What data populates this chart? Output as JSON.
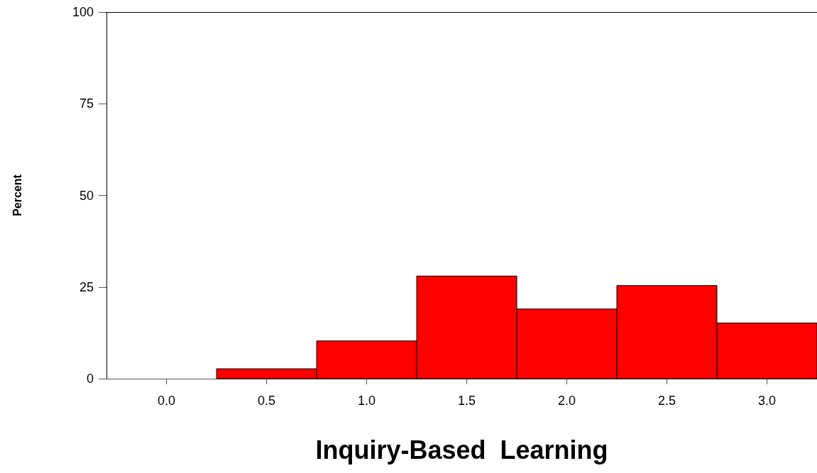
{
  "chart_data": {
    "type": "histogram",
    "xlabel": "Inquiry-Based  Learning",
    "ylabel": "Percent",
    "bins": [
      0.25,
      0.75,
      1.25,
      1.75,
      2.25,
      2.75,
      3.25
    ],
    "values": [
      2.7,
      10.3,
      28.0,
      19.0,
      25.4,
      15.2
    ],
    "color": "#ff0000",
    "xlim": [
      -0.3,
      3.25
    ],
    "xticks": [
      {
        "value": 0,
        "label": "0.0"
      },
      0.5,
      {
        "value": 1,
        "label": "1.0"
      },
      1.5,
      {
        "value": 2,
        "label": "2.0"
      },
      2.5,
      {
        "value": 3,
        "label": "3.0"
      }
    ],
    "ylim": [
      0,
      100
    ],
    "yticks": [
      0,
      25,
      50,
      75,
      100
    ],
    "grid": false
  }
}
